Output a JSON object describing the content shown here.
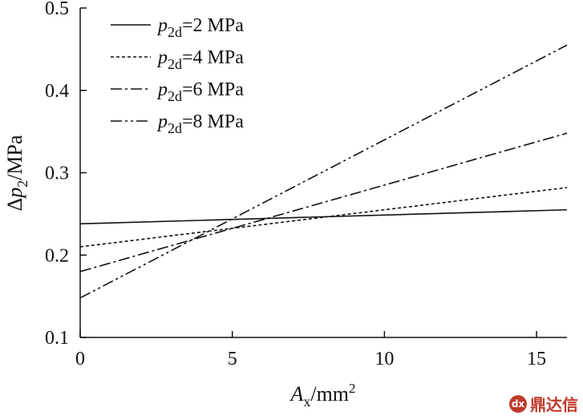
{
  "chart_data": {
    "type": "line",
    "xlabel_main": "A",
    "xlabel_sub": "x",
    "xlabel_unit": "/mm",
    "xlabel_sup": "2",
    "ylabel_prefix": "Δ",
    "ylabel_main": "p",
    "ylabel_sub": "2",
    "ylabel_unit": "/MPa",
    "xlim": [
      0,
      16
    ],
    "ylim": [
      0.1,
      0.5
    ],
    "xticks": [
      0,
      5,
      10,
      15
    ],
    "xtick_labels": [
      "0",
      "5",
      "10",
      "15"
    ],
    "yticks": [
      0.1,
      0.2,
      0.3,
      0.4,
      0.5
    ],
    "ytick_labels": [
      "0.1",
      "0.2",
      "0.3",
      "0.4",
      "0.5"
    ],
    "legend_position": "top-left",
    "series": [
      {
        "name_main": "p",
        "name_sub": "2d",
        "name_rest": "=2 MPa",
        "dash": "solid",
        "x": [
          0,
          16
        ],
        "y": [
          0.238,
          0.255
        ]
      },
      {
        "name_main": "p",
        "name_sub": "2d",
        "name_rest": "=4 MPa",
        "dash": "dotted",
        "x": [
          0,
          16
        ],
        "y": [
          0.21,
          0.282
        ]
      },
      {
        "name_main": "p",
        "name_sub": "2d",
        "name_rest": "=6 MPa",
        "dash": "dashdot",
        "x": [
          0,
          16
        ],
        "y": [
          0.18,
          0.348
        ]
      },
      {
        "name_main": "p",
        "name_sub": "2d",
        "name_rest": "=8 MPa",
        "dash": "dashdotdot",
        "x": [
          0,
          16
        ],
        "y": [
          0.148,
          0.455
        ]
      }
    ]
  },
  "watermark": {
    "logo_text": "dx",
    "text": "鼎达信"
  }
}
